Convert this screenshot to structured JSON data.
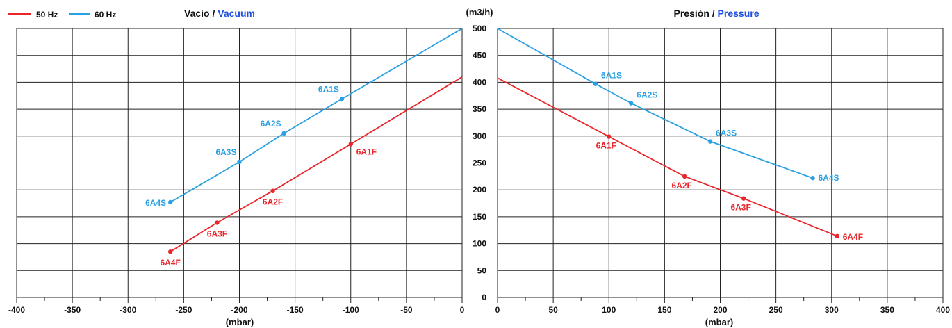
{
  "colors": {
    "hz50": "#e8262b",
    "hz60": "#2aa0e4",
    "accent_blue": "#1f4fe0",
    "grid": "#222222"
  },
  "legend": [
    {
      "name": "50 Hz",
      "color": "#e8262b"
    },
    {
      "name": "60 Hz",
      "color": "#2aa0e4"
    }
  ],
  "y_unit_label": "(m3/h)",
  "chart_data": [
    {
      "type": "line",
      "title": "Vacío / ",
      "title_accent": "Vacuum",
      "xlabel": "(mbar)",
      "xlim": [
        -400,
        0
      ],
      "ylim": [
        0,
        500
      ],
      "x_ticks": [
        "-400",
        "-350",
        "-300",
        "-250",
        "-200",
        "-150",
        "-100",
        "-50",
        "0"
      ],
      "y_ticks": [
        "0",
        "50",
        "100",
        "150",
        "200",
        "250",
        "300",
        "350",
        "400",
        "450",
        "500"
      ],
      "series": [
        {
          "name": "60 Hz",
          "line": [
            [
              -262,
              177
            ],
            [
              -200,
              252
            ],
            [
              -160,
              305
            ],
            [
              -108,
              369
            ],
            [
              0,
              500
            ]
          ],
          "points": [
            {
              "label": "6A4S",
              "x": -262,
              "y": 177
            },
            {
              "label": "6A3S",
              "x": -200,
              "y": 252
            },
            {
              "label": "6A2S",
              "x": -160,
              "y": 305
            },
            {
              "label": "6A1S",
              "x": -108,
              "y": 369
            }
          ]
        },
        {
          "name": "50 Hz",
          "line": [
            [
              -262,
              85
            ],
            [
              -220,
              139
            ],
            [
              -170,
              198
            ],
            [
              -100,
              285
            ],
            [
              0,
              410
            ]
          ],
          "points": [
            {
              "label": "6A4F",
              "x": -262,
              "y": 85
            },
            {
              "label": "6A3F",
              "x": -220,
              "y": 139
            },
            {
              "label": "6A2F",
              "x": -170,
              "y": 198
            },
            {
              "label": "6A1F",
              "x": -100,
              "y": 285
            }
          ]
        }
      ]
    },
    {
      "type": "line",
      "title": "Presión / ",
      "title_accent": "Pressure",
      "xlabel": "(mbar)",
      "xlim": [
        0,
        400
      ],
      "ylim": [
        0,
        500
      ],
      "x_ticks": [
        "0",
        "50",
        "100",
        "150",
        "200",
        "250",
        "300",
        "350",
        "400"
      ],
      "series": [
        {
          "name": "60 Hz",
          "line": [
            [
              0,
              500
            ],
            [
              88,
              397
            ],
            [
              120,
              361
            ],
            [
              191,
              290
            ],
            [
              283,
              222
            ]
          ],
          "points": [
            {
              "label": "6A1S",
              "x": 88,
              "y": 397
            },
            {
              "label": "6A2S",
              "x": 120,
              "y": 361
            },
            {
              "label": "6A3S",
              "x": 191,
              "y": 290
            },
            {
              "label": "6A4S",
              "x": 283,
              "y": 222
            }
          ]
        },
        {
          "name": "50 Hz",
          "line": [
            [
              0,
              408
            ],
            [
              100,
              299
            ],
            [
              168,
              225
            ],
            [
              221,
              184
            ],
            [
              305,
              114
            ]
          ],
          "points": [
            {
              "label": "6A1F",
              "x": 100,
              "y": 299
            },
            {
              "label": "6A2F",
              "x": 168,
              "y": 225
            },
            {
              "label": "6A3F",
              "x": 221,
              "y": 184
            },
            {
              "label": "6A4F",
              "x": 305,
              "y": 114
            }
          ]
        }
      ]
    }
  ]
}
